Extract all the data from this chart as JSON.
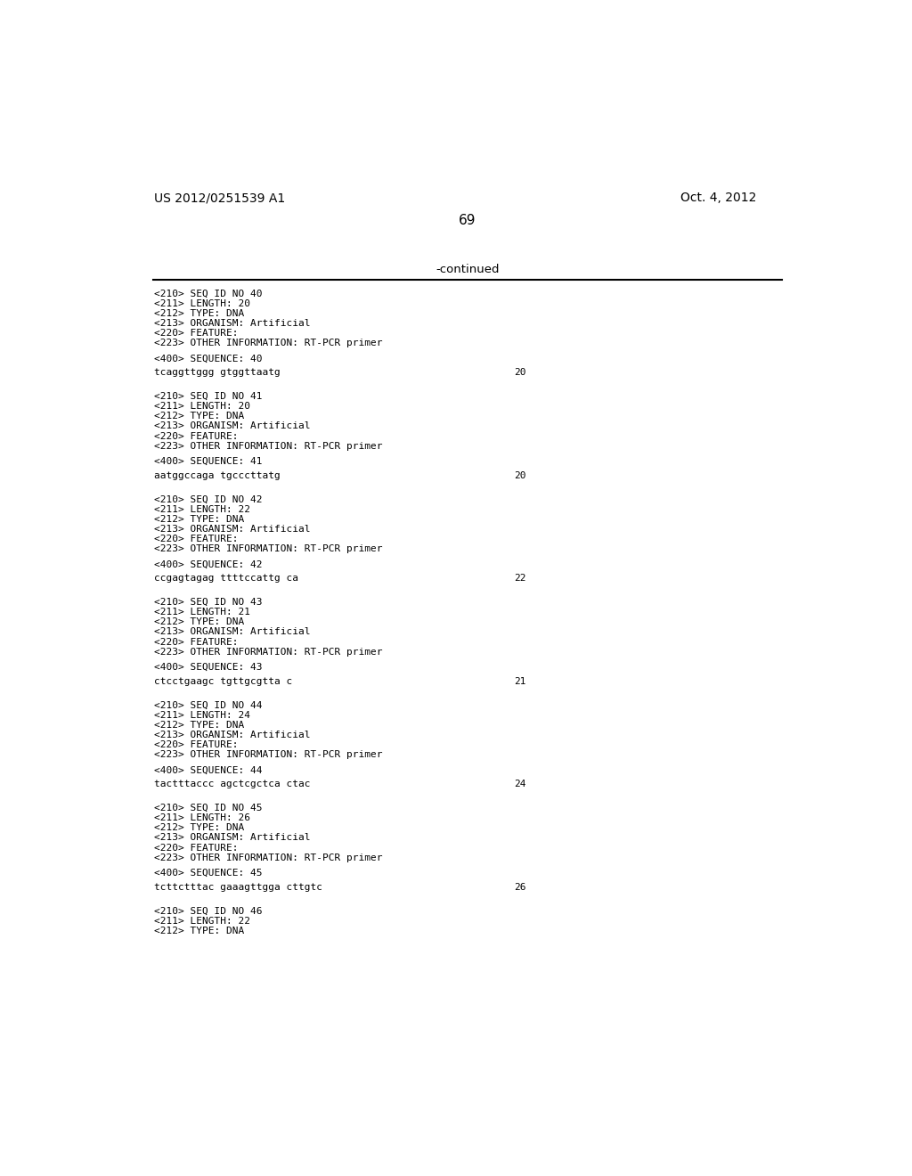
{
  "page_number": "69",
  "patent_id": "US 2012/0251539 A1",
  "patent_date": "Oct. 4, 2012",
  "continued_label": "-continued",
  "background_color": "#ffffff",
  "text_color": "#000000",
  "blocks": [
    {
      "lines": [
        "<210> SEQ ID NO 40",
        "<211> LENGTH: 20",
        "<212> TYPE: DNA",
        "<213> ORGANISM: Artificial",
        "<220> FEATURE:",
        "<223> OTHER INFORMATION: RT-PCR primer"
      ],
      "sequence_label": "<400> SEQUENCE: 40",
      "sequence": "tcaggttggg gtggttaatg",
      "seq_length": "20"
    },
    {
      "lines": [
        "<210> SEQ ID NO 41",
        "<211> LENGTH: 20",
        "<212> TYPE: DNA",
        "<213> ORGANISM: Artificial",
        "<220> FEATURE:",
        "<223> OTHER INFORMATION: RT-PCR primer"
      ],
      "sequence_label": "<400> SEQUENCE: 41",
      "sequence": "aatggccaga tgcccttatg",
      "seq_length": "20"
    },
    {
      "lines": [
        "<210> SEQ ID NO 42",
        "<211> LENGTH: 22",
        "<212> TYPE: DNA",
        "<213> ORGANISM: Artificial",
        "<220> FEATURE:",
        "<223> OTHER INFORMATION: RT-PCR primer"
      ],
      "sequence_label": "<400> SEQUENCE: 42",
      "sequence": "ccgagtagag ttttccattg ca",
      "seq_length": "22"
    },
    {
      "lines": [
        "<210> SEQ ID NO 43",
        "<211> LENGTH: 21",
        "<212> TYPE: DNA",
        "<213> ORGANISM: Artificial",
        "<220> FEATURE:",
        "<223> OTHER INFORMATION: RT-PCR primer"
      ],
      "sequence_label": "<400> SEQUENCE: 43",
      "sequence": "ctcctgaagc tgttgcgtta c",
      "seq_length": "21"
    },
    {
      "lines": [
        "<210> SEQ ID NO 44",
        "<211> LENGTH: 24",
        "<212> TYPE: DNA",
        "<213> ORGANISM: Artificial",
        "<220> FEATURE:",
        "<223> OTHER INFORMATION: RT-PCR primer"
      ],
      "sequence_label": "<400> SEQUENCE: 44",
      "sequence": "tactttaccc agctcgctca ctac",
      "seq_length": "24"
    },
    {
      "lines": [
        "<210> SEQ ID NO 45",
        "<211> LENGTH: 26",
        "<212> TYPE: DNA",
        "<213> ORGANISM: Artificial",
        "<220> FEATURE:",
        "<223> OTHER INFORMATION: RT-PCR primer"
      ],
      "sequence_label": "<400> SEQUENCE: 45",
      "sequence": "tcttctttac gaaagttgga cttgtc",
      "seq_length": "26"
    },
    {
      "lines": [
        "<210> SEQ ID NO 46",
        "<211> LENGTH: 22",
        "<212> TYPE: DNA"
      ],
      "sequence_label": null,
      "sequence": null,
      "seq_length": null
    }
  ]
}
